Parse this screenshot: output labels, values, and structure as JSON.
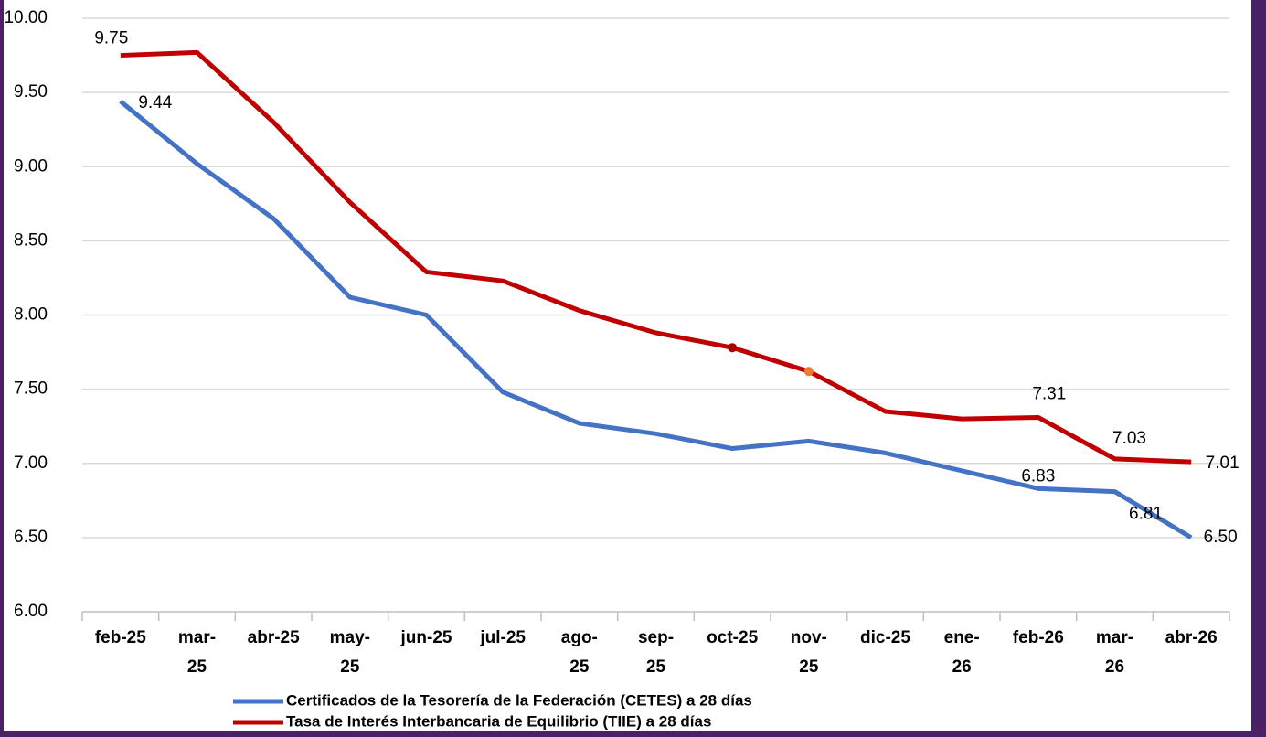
{
  "chart_data": {
    "type": "line",
    "categories": [
      "feb-25",
      "mar-25",
      "abr-25",
      "may-25",
      "jun-25",
      "jul-25",
      "ago-25",
      "sep-25",
      "oct-25",
      "nov-25",
      "dic-25",
      "ene-26",
      "feb-26",
      "mar-26",
      "abr-26"
    ],
    "series": [
      {
        "name": "Certificados de la Tesorería de la Federación (CETES) a 28 días",
        "color": "#4472c4",
        "values": [
          9.44,
          9.02,
          8.65,
          8.12,
          8.0,
          7.48,
          7.27,
          7.2,
          7.1,
          7.15,
          7.07,
          6.95,
          6.83,
          6.81,
          6.5
        ],
        "value_labels": [
          "9.44",
          null,
          null,
          null,
          null,
          null,
          null,
          null,
          null,
          null,
          null,
          null,
          "6.83",
          "6.81",
          "6.50"
        ]
      },
      {
        "name": "Tasa de Interés Interbancaria de Equilibrio (TIIE) a 28 días",
        "color": "#c00000",
        "values": [
          9.75,
          9.77,
          9.3,
          8.76,
          8.29,
          8.23,
          8.03,
          7.88,
          7.78,
          7.62,
          7.35,
          7.3,
          7.31,
          7.03,
          7.01
        ],
        "value_labels": [
          "9.75",
          null,
          null,
          null,
          null,
          null,
          null,
          null,
          null,
          null,
          null,
          null,
          "7.31",
          "7.03",
          "7.01"
        ]
      }
    ],
    "ylim": [
      6,
      10
    ],
    "yticks": [
      {
        "value": 6,
        "label": "6.00"
      },
      {
        "value": 6.5,
        "label": "6.50"
      },
      {
        "value": 7,
        "label": "7.00"
      },
      {
        "value": 7.5,
        "label": "7.50"
      },
      {
        "value": 8,
        "label": "8.00"
      },
      {
        "value": 8.5,
        "label": "8.50"
      },
      {
        "value": 9,
        "label": "9.00"
      },
      {
        "value": 9.5,
        "label": "9.50"
      },
      {
        "value": 10,
        "label": "10.00"
      }
    ],
    "grid": true,
    "legend": "bottom"
  }
}
